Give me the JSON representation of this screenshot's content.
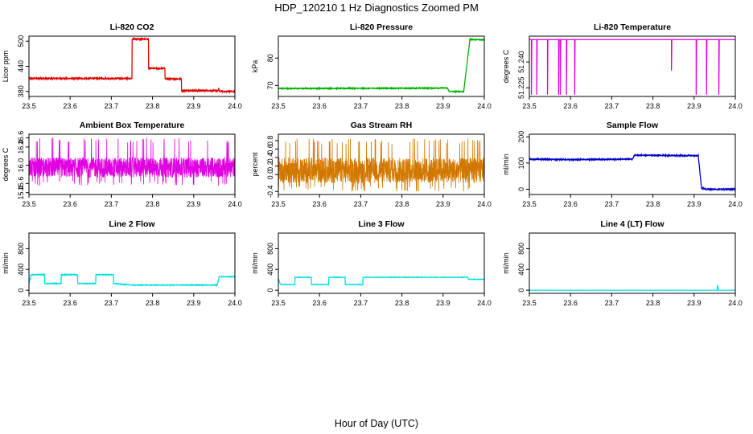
{
  "figure": {
    "title": "HDP_120210  1 Hz Diagnostics Zoomed PM",
    "xlabel": "Hour of Day (UTC)"
  },
  "chart_data": [
    {
      "type": "line",
      "title": "Li-820 CO2",
      "ylabel": "Licor ppm",
      "color": "#e00000",
      "xlim": [
        23.5,
        24.0
      ],
      "ylim": [
        368,
        512
      ],
      "xticks": [
        "23.5",
        "23.6",
        "23.7",
        "23.8",
        "23.9",
        "24.0"
      ],
      "yticks": [
        "380",
        "440",
        "500"
      ],
      "segments": [
        [
          23.5,
          411
        ],
        [
          23.75,
          411
        ],
        [
          23.75,
          505
        ],
        [
          23.79,
          505
        ],
        [
          23.79,
          435
        ],
        [
          23.83,
          435
        ],
        [
          23.83,
          410
        ],
        [
          23.87,
          410
        ],
        [
          23.87,
          382
        ],
        [
          23.96,
          382
        ],
        [
          23.96,
          392
        ],
        [
          23.962,
          380
        ],
        [
          24.0,
          380
        ]
      ],
      "noise": 1.5
    },
    {
      "type": "line",
      "title": "Li-820 Pressure",
      "ylabel": "kPa",
      "color": "#00b000",
      "xlim": [
        23.5,
        24.0
      ],
      "ylim": [
        66,
        88
      ],
      "xticks": [
        "23.5",
        "23.6",
        "23.7",
        "23.8",
        "23.9",
        "24.0"
      ],
      "yticks": [
        "70",
        "80"
      ],
      "segments": [
        [
          23.5,
          68.9
        ],
        [
          23.82,
          69.0
        ],
        [
          23.91,
          69.1
        ],
        [
          23.915,
          67.8
        ],
        [
          23.95,
          67.8
        ],
        [
          23.965,
          86.8
        ],
        [
          24.0,
          86.7
        ]
      ],
      "noise": 0.15
    },
    {
      "type": "line",
      "title": "Li-820 Temperature",
      "ylabel": "degrees C",
      "color": "#e000e0",
      "xlim": [
        23.5,
        24.0
      ],
      "ylim": [
        51.22,
        51.255
      ],
      "xticks": [
        "23.5",
        "23.6",
        "23.7",
        "23.8",
        "23.9",
        "24.0"
      ],
      "yticks": [
        "51.225",
        "51.240"
      ],
      "baseline": 51.253,
      "dips": [
        [
          23.505,
          51.221
        ],
        [
          23.518,
          51.221
        ],
        [
          23.544,
          51.221
        ],
        [
          23.571,
          51.221
        ],
        [
          23.575,
          51.221
        ],
        [
          23.59,
          51.221
        ],
        [
          23.61,
          51.221
        ],
        [
          23.845,
          51.235
        ],
        [
          23.905,
          51.221
        ],
        [
          23.93,
          51.221
        ],
        [
          23.96,
          51.221
        ]
      ]
    },
    {
      "type": "line",
      "title": "Ambient Box Temperature",
      "ylabel": "degrees C",
      "color": "#e000e0",
      "xlim": [
        23.5,
        24.0
      ],
      "ylim": [
        15.36,
        16.68
      ],
      "xticks": [
        "23.5",
        "23.6",
        "23.7",
        "23.8",
        "23.9",
        "24.0"
      ],
      "yticks": [
        "15.4",
        "15.6",
        "16.0",
        "16.4",
        "16.6"
      ],
      "center": 15.95,
      "low": 15.55,
      "high": 16.6,
      "noise_band": 0.22
    },
    {
      "type": "line",
      "title": "Gas Stream RH",
      "ylabel": "percent",
      "color": "#e08000",
      "xlim": [
        23.5,
        24.0
      ],
      "ylim": [
        -0.47,
        0.95
      ],
      "xticks": [
        "23.5",
        "23.6",
        "23.7",
        "23.8",
        "23.9",
        "24.0"
      ],
      "yticks": [
        "-0.4",
        "0.0",
        "0.2",
        "0.4",
        "0.6",
        "0.8"
      ],
      "center": 0.1,
      "low": -0.4,
      "high": 0.85,
      "noise_band": 0.3
    },
    {
      "type": "line",
      "title": "Sample Flow",
      "ylabel": "ml/min",
      "color": "#0000c8",
      "xlim": [
        23.5,
        24.0
      ],
      "ylim": [
        -20,
        210
      ],
      "xticks": [
        "23.5",
        "23.6",
        "23.7",
        "23.8",
        "23.9",
        "24.0"
      ],
      "yticks": [
        "0",
        "100",
        "200"
      ],
      "segments": [
        [
          23.5,
          115
        ],
        [
          23.6,
          113
        ],
        [
          23.75,
          115
        ],
        [
          23.755,
          130
        ],
        [
          23.91,
          128
        ],
        [
          23.918,
          5
        ],
        [
          23.93,
          0
        ],
        [
          24.0,
          0
        ]
      ],
      "noise": 2
    },
    {
      "type": "line",
      "title": "Line 2 Flow",
      "ylabel": "ml/min",
      "color": "#00e0e0",
      "xlim": [
        23.5,
        24.0
      ],
      "ylim": [
        -60,
        1100
      ],
      "xticks": [
        "23.5",
        "23.6",
        "23.7",
        "23.8",
        "23.9",
        "24.0"
      ],
      "yticks": [
        "0",
        "400",
        "800"
      ],
      "segments": [
        [
          23.5,
          130
        ],
        [
          23.505,
          300
        ],
        [
          23.538,
          300
        ],
        [
          23.538,
          130
        ],
        [
          23.578,
          130
        ],
        [
          23.578,
          300
        ],
        [
          23.618,
          300
        ],
        [
          23.618,
          130
        ],
        [
          23.662,
          130
        ],
        [
          23.662,
          300
        ],
        [
          23.705,
          300
        ],
        [
          23.705,
          130
        ],
        [
          23.75,
          100
        ],
        [
          23.957,
          100
        ],
        [
          23.962,
          260
        ],
        [
          24.0,
          260
        ]
      ],
      "noise": 6
    },
    {
      "type": "line",
      "title": "Line 3 Flow",
      "ylabel": "ml/min",
      "color": "#00e0e0",
      "xlim": [
        23.5,
        24.0
      ],
      "ylim": [
        -60,
        1100
      ],
      "xticks": [
        "23.5",
        "23.6",
        "23.7",
        "23.8",
        "23.9",
        "24.0"
      ],
      "yticks": [
        "0",
        "400",
        "800"
      ],
      "segments": [
        [
          23.5,
          230
        ],
        [
          23.505,
          110
        ],
        [
          23.54,
          110
        ],
        [
          23.54,
          250
        ],
        [
          23.58,
          250
        ],
        [
          23.58,
          110
        ],
        [
          23.622,
          110
        ],
        [
          23.622,
          250
        ],
        [
          23.662,
          250
        ],
        [
          23.662,
          110
        ],
        [
          23.705,
          110
        ],
        [
          23.705,
          250
        ],
        [
          23.96,
          250
        ],
        [
          23.962,
          210
        ],
        [
          24.0,
          210
        ]
      ],
      "noise": 4
    },
    {
      "type": "line",
      "title": "Line 4 (LT) Flow",
      "ylabel": "ml/min",
      "color": "#00e0e0",
      "xlim": [
        23.5,
        24.0
      ],
      "ylim": [
        -60,
        1100
      ],
      "xticks": [
        "23.5",
        "23.6",
        "23.7",
        "23.8",
        "23.9",
        "24.0"
      ],
      "yticks": [
        "0",
        "400",
        "800"
      ],
      "segments": [
        [
          23.5,
          0
        ],
        [
          23.956,
          0
        ],
        [
          23.957,
          100
        ],
        [
          23.959,
          20
        ],
        [
          23.96,
          0
        ],
        [
          24.0,
          0
        ]
      ],
      "noise": 0.5
    }
  ]
}
